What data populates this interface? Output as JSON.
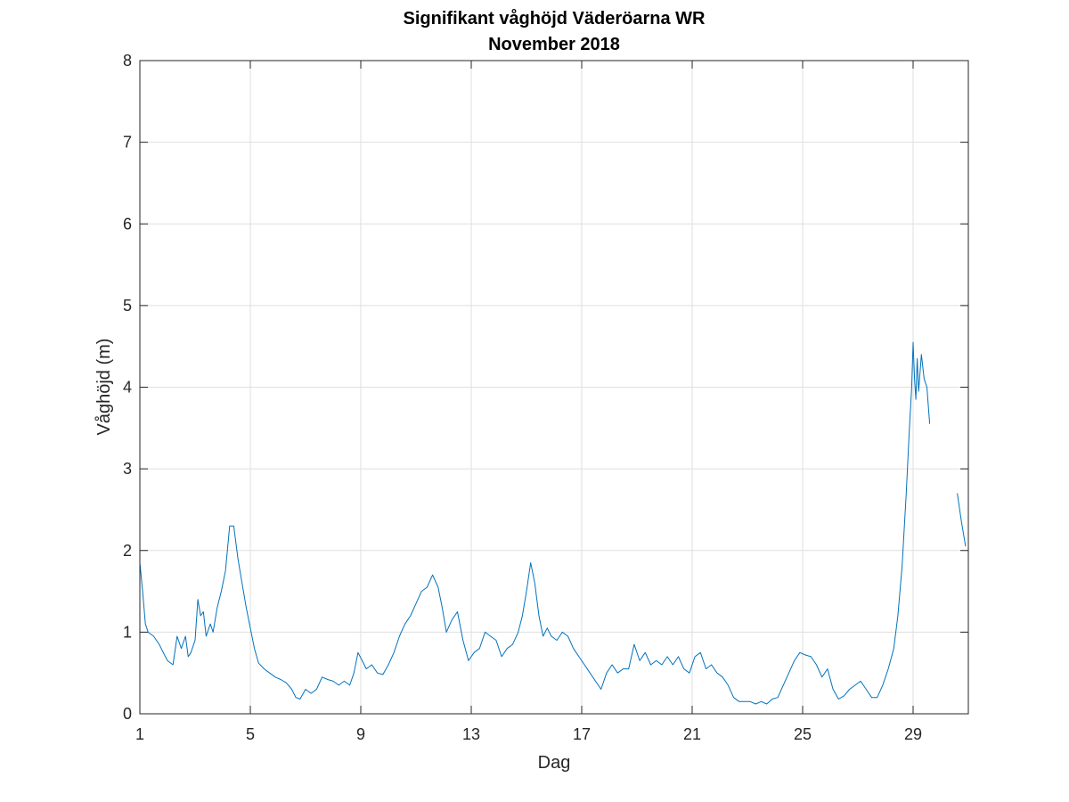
{
  "chart_data": {
    "type": "line",
    "title": "Signifikant våghöjd Väderöarna WR",
    "subtitle": "November 2018",
    "xlabel": "Dag",
    "ylabel": "Våghöjd (m)",
    "xlim": [
      1,
      31
    ],
    "ylim": [
      0,
      8
    ],
    "xticks": [
      1,
      5,
      9,
      13,
      17,
      21,
      25,
      29
    ],
    "yticks": [
      0,
      1,
      2,
      3,
      4,
      5,
      6,
      7,
      8
    ],
    "grid": true,
    "legend": "none",
    "series": [
      {
        "color": "#0072BD",
        "segments": [
          {
            "x": [
              1.0,
              1.1,
              1.2,
              1.3,
              1.5,
              1.7,
              1.85,
              2.0,
              2.2,
              2.35,
              2.5,
              2.65,
              2.75,
              2.85,
              3.0,
              3.1,
              3.2,
              3.3,
              3.4,
              3.55,
              3.65,
              3.8,
              3.95,
              4.1,
              4.25,
              4.4,
              4.55,
              4.7,
              4.85,
              5.0,
              5.15,
              5.3,
              5.5,
              5.7,
              5.9,
              6.1,
              6.3,
              6.5,
              6.65,
              6.8,
              7.0,
              7.2,
              7.4,
              7.6,
              7.8,
              8.0,
              8.2,
              8.4,
              8.6,
              8.75,
              8.9,
              9.05,
              9.2,
              9.4,
              9.6,
              9.8,
              10.0,
              10.2,
              10.4,
              10.6,
              10.8,
              11.0,
              11.2,
              11.4,
              11.6,
              11.8,
              11.95,
              12.1,
              12.3,
              12.5,
              12.7,
              12.9,
              13.1,
              13.3,
              13.5,
              13.7,
              13.9,
              14.1,
              14.3,
              14.5,
              14.7,
              14.85,
              15.0,
              15.15,
              15.3,
              15.45,
              15.6,
              15.75,
              15.9,
              16.1,
              16.3,
              16.5,
              16.7,
              16.9,
              17.1,
              17.3,
              17.5,
              17.7,
              17.9,
              18.1,
              18.3,
              18.5,
              18.7,
              18.9,
              19.1,
              19.3,
              19.5,
              19.7,
              19.9,
              20.1,
              20.3,
              20.5,
              20.7,
              20.9,
              21.1,
              21.3,
              21.5,
              21.7,
              21.9,
              22.1,
              22.3,
              22.5,
              22.7,
              22.9,
              23.1,
              23.3,
              23.5,
              23.7,
              23.9,
              24.1,
              24.3,
              24.5,
              24.7,
              24.9,
              25.1,
              25.3,
              25.5,
              25.7,
              25.9,
              26.1,
              26.3,
              26.5,
              26.7,
              26.9,
              27.1,
              27.3,
              27.5,
              27.7,
              27.9,
              28.1,
              28.3,
              28.45,
              28.6,
              28.75,
              28.85,
              28.95,
              29.0,
              29.05,
              29.1,
              29.15,
              29.2,
              29.3,
              29.4,
              29.5,
              29.6
            ],
            "y": [
              1.85,
              1.5,
              1.1,
              1.0,
              0.95,
              0.85,
              0.75,
              0.65,
              0.6,
              0.95,
              0.8,
              0.95,
              0.7,
              0.75,
              0.9,
              1.4,
              1.2,
              1.25,
              0.95,
              1.1,
              1.0,
              1.3,
              1.5,
              1.75,
              2.3,
              2.3,
              1.9,
              1.6,
              1.3,
              1.05,
              0.8,
              0.62,
              0.55,
              0.5,
              0.45,
              0.42,
              0.38,
              0.3,
              0.2,
              0.18,
              0.3,
              0.25,
              0.3,
              0.45,
              0.42,
              0.4,
              0.35,
              0.4,
              0.35,
              0.5,
              0.75,
              0.65,
              0.55,
              0.6,
              0.5,
              0.48,
              0.6,
              0.75,
              0.95,
              1.1,
              1.2,
              1.35,
              1.5,
              1.55,
              1.7,
              1.55,
              1.3,
              1.0,
              1.15,
              1.25,
              0.9,
              0.65,
              0.75,
              0.8,
              1.0,
              0.95,
              0.9,
              0.7,
              0.8,
              0.85,
              1.0,
              1.2,
              1.5,
              1.85,
              1.6,
              1.2,
              0.95,
              1.05,
              0.95,
              0.9,
              1.0,
              0.95,
              0.8,
              0.7,
              0.6,
              0.5,
              0.4,
              0.3,
              0.5,
              0.6,
              0.5,
              0.55,
              0.55,
              0.85,
              0.65,
              0.75,
              0.6,
              0.65,
              0.6,
              0.7,
              0.6,
              0.7,
              0.55,
              0.5,
              0.7,
              0.75,
              0.55,
              0.6,
              0.5,
              0.45,
              0.35,
              0.2,
              0.15,
              0.15,
              0.15,
              0.12,
              0.15,
              0.12,
              0.18,
              0.2,
              0.35,
              0.5,
              0.65,
              0.75,
              0.72,
              0.7,
              0.6,
              0.45,
              0.55,
              0.3,
              0.18,
              0.22,
              0.3,
              0.35,
              0.4,
              0.3,
              0.2,
              0.2,
              0.35,
              0.55,
              0.8,
              1.2,
              1.8,
              2.7,
              3.4,
              4.0,
              4.55,
              4.1,
              3.85,
              4.35,
              3.95,
              4.4,
              4.1,
              4.0,
              3.55
            ]
          },
          {
            "x": [
              30.6,
              30.75,
              30.9
            ],
            "y": [
              2.7,
              2.35,
              2.05
            ]
          }
        ]
      }
    ]
  }
}
